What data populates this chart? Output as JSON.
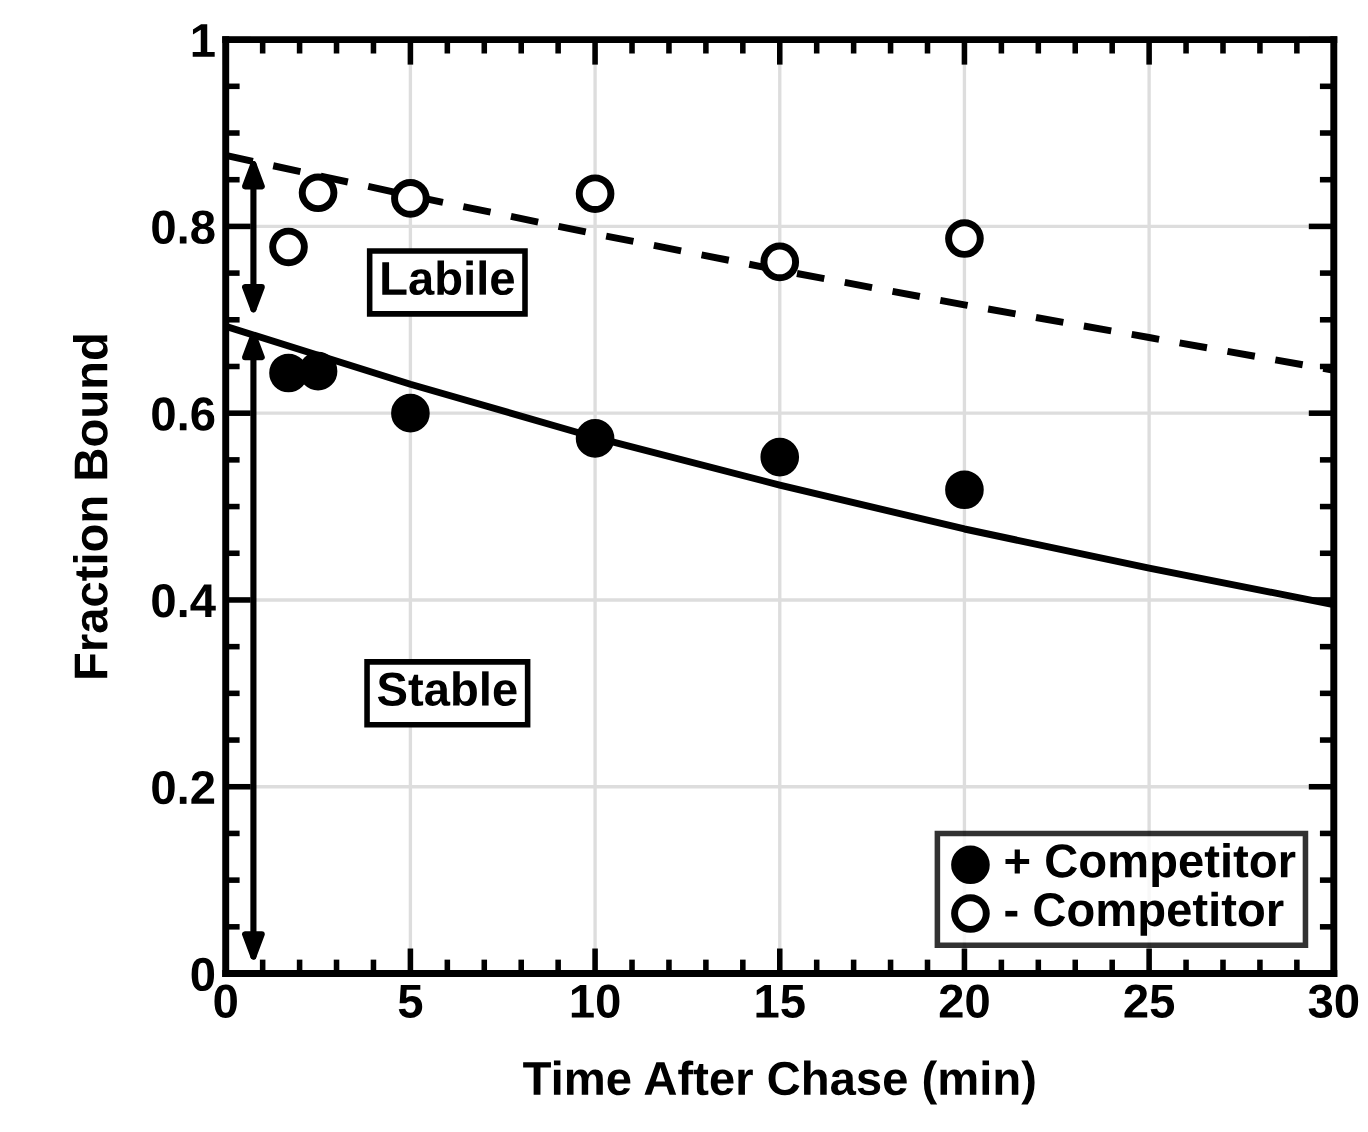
{
  "chart_data": {
    "type": "scatter",
    "xlabel": "Time After Chase (min)",
    "ylabel": "Fraction Bound",
    "xlim": [
      0,
      30
    ],
    "ylim": [
      0,
      1
    ],
    "xticks": [
      0,
      5,
      10,
      15,
      20,
      25,
      30
    ],
    "yticks": [
      0,
      0.2,
      0.4,
      0.6,
      0.8,
      1
    ],
    "grid": true,
    "legend": "bottom right",
    "series": [
      {
        "name": "+ Competitor",
        "color": "#000000",
        "marker": "circle",
        "x": [
          1.7,
          2.5,
          5,
          10,
          15,
          20
        ],
        "values": [
          0.643,
          0.645,
          0.6,
          0.573,
          0.553,
          0.518
        ]
      },
      {
        "name": "- Competitor",
        "color": "#ffffff",
        "marker": "circle",
        "x": [
          1.7,
          2.5,
          5,
          10,
          15,
          20
        ],
        "values": [
          0.778,
          0.836,
          0.83,
          0.835,
          0.762,
          0.787
        ]
      },
      {
        "type": "line",
        "color": "#000000",
        "line_style": "solid",
        "x": [
          0,
          5,
          10,
          15,
          20,
          25,
          30
        ],
        "values": [
          0.693,
          0.631,
          0.574,
          0.523,
          0.476,
          0.434,
          0.395
        ]
      },
      {
        "type": "line",
        "color": "#000000",
        "line_style": "dashed",
        "x": [
          0,
          5,
          10,
          15,
          20,
          25,
          30
        ],
        "values": [
          0.876,
          0.833,
          0.792,
          0.753,
          0.716,
          0.681,
          0.646
        ]
      }
    ],
    "annotations": [
      "Labile",
      "Stable"
    ]
  }
}
